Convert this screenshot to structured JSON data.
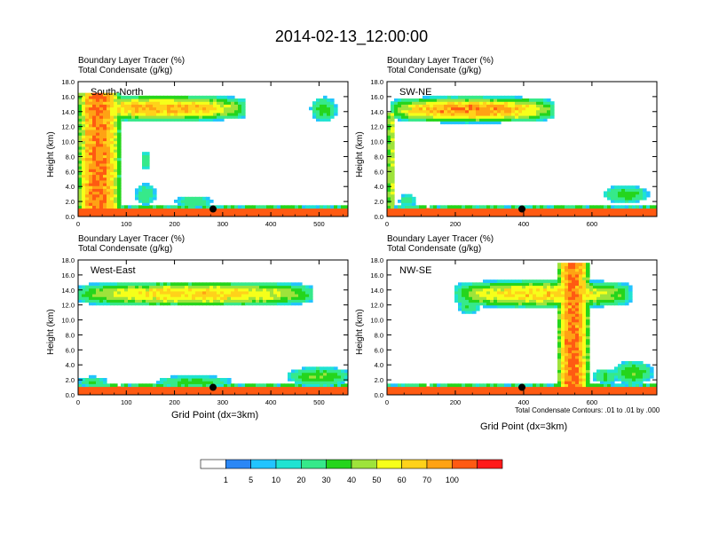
{
  "title": "2014-02-13_12:00:00",
  "colors": {
    "palette": [
      "#ffffff",
      "#2b87f5",
      "#22c4ff",
      "#1fe3d2",
      "#36e98a",
      "#25d51c",
      "#9ee33b",
      "#f6ff1a",
      "#ffd21a",
      "#ffa214",
      "#ff5a12",
      "#ff1a1a"
    ],
    "contour": "#000000",
    "marker": "#000000"
  },
  "chart_data": [
    {
      "type": "heatmap",
      "panel_label": "South-North",
      "field_label_1": "Boundary Layer Tracer    (%)",
      "field_label_2": "Total Condensate    (g/kg)",
      "ylabel": "Height (km)",
      "xlabel": "",
      "xlim": [
        0,
        560
      ],
      "ylim": [
        0,
        18
      ],
      "xticks": [
        "0",
        "100",
        "200",
        "300",
        "400",
        "500"
      ],
      "xtick_values": [
        0,
        100,
        200,
        300,
        400,
        500
      ],
      "yticks": [
        "0.0",
        "2.0",
        "4.0",
        "6.0",
        "8.0",
        "10.0",
        "12.0",
        "14.0",
        "16.0",
        "18.0"
      ],
      "marker": {
        "x": 280,
        "y": 1.0
      },
      "features": [
        {
          "kind": "anvil",
          "x0": 0,
          "x1": 400,
          "yc": 14.5,
          "h": 3.6,
          "peak": 62
        },
        {
          "kind": "column",
          "x0": 0,
          "x1": 85,
          "y0": 0,
          "y1": 16.5,
          "peak": 72
        },
        {
          "kind": "blob",
          "xc": 510,
          "yc": 14.3,
          "rx": 28,
          "ry": 1.7,
          "peak": 25
        },
        {
          "kind": "blob",
          "xc": 140,
          "yc": 7.5,
          "rx": 10,
          "ry": 1.3,
          "peak": 20
        },
        {
          "kind": "blob",
          "xc": 140,
          "yc": 3.0,
          "rx": 22,
          "ry": 1.5,
          "peak": 18
        },
        {
          "kind": "blob",
          "xc": 240,
          "yc": 2.0,
          "rx": 40,
          "ry": 0.8,
          "peak": 18
        }
      ]
    },
    {
      "type": "heatmap",
      "panel_label": "SW-NE",
      "field_label_1": "Boundary Layer Tracer    (%)",
      "field_label_2": "Total Condensate    (g/kg)",
      "ylabel": "Height (km)",
      "xlabel": "",
      "xlim": [
        0,
        790
      ],
      "ylim": [
        0,
        18
      ],
      "xticks": [
        "0",
        "200",
        "400",
        "600"
      ],
      "xtick_values": [
        0,
        200,
        400,
        600
      ],
      "yticks": [
        "0.0",
        "2.0",
        "4.0",
        "6.0",
        "8.0",
        "10.0",
        "12.0",
        "14.0",
        "16.0",
        "18.0"
      ],
      "marker": {
        "x": 395,
        "y": 1.0
      },
      "features": [
        {
          "kind": "anvil",
          "x0": 10,
          "x1": 560,
          "yc": 14.3,
          "h": 3.6,
          "peak": 68
        },
        {
          "kind": "column",
          "x0": 0,
          "x1": 25,
          "y0": 0,
          "y1": 14,
          "peak": 40
        },
        {
          "kind": "blob",
          "xc": 700,
          "yc": 3.0,
          "rx": 70,
          "ry": 1.2,
          "peak": 25
        },
        {
          "kind": "blob",
          "xc": 60,
          "yc": 2.2,
          "rx": 25,
          "ry": 0.8,
          "peak": 18
        }
      ]
    },
    {
      "type": "heatmap",
      "panel_label": "West-East",
      "field_label_1": "Boundary Layer Tracer    (%)",
      "field_label_2": "Total Condensate    (g/kg)",
      "ylabel": "Height (km)",
      "xlabel": "Grid Point (dx=3km)",
      "xlim": [
        0,
        560
      ],
      "ylim": [
        0,
        18
      ],
      "xticks": [
        "0",
        "100",
        "200",
        "300",
        "400",
        "500"
      ],
      "xtick_values": [
        0,
        100,
        200,
        300,
        400,
        500
      ],
      "yticks": [
        "0.0",
        "2.0",
        "4.0",
        "6.0",
        "8.0",
        "10.0",
        "12.0",
        "14.0",
        "16.0",
        "18.0"
      ],
      "marker": {
        "x": 280,
        "y": 1.0
      },
      "features": [
        {
          "kind": "anvil",
          "x0": 0,
          "x1": 560,
          "yc": 13.5,
          "h": 3.4,
          "peak": 55
        },
        {
          "kind": "blob",
          "xc": 240,
          "yc": 1.8,
          "rx": 80,
          "ry": 0.8,
          "peak": 25
        },
        {
          "kind": "blob",
          "xc": 500,
          "yc": 2.5,
          "rx": 70,
          "ry": 1.3,
          "peak": 30
        },
        {
          "kind": "blob",
          "xc": 30,
          "yc": 1.8,
          "rx": 30,
          "ry": 0.7,
          "peak": 20
        }
      ]
    },
    {
      "type": "heatmap",
      "panel_label": "NW-SE",
      "field_label_1": "Boundary Layer Tracer    (%)",
      "field_label_2": "Total Condensate    (g/kg)",
      "ylabel": "Height (km)",
      "xlabel": "Grid Point (dx=3km)",
      "xlim": [
        0,
        790
      ],
      "ylim": [
        0,
        18
      ],
      "xticks": [
        "0",
        "200",
        "400",
        "600"
      ],
      "xtick_values": [
        0,
        200,
        400,
        600
      ],
      "yticks": [
        "0.0",
        "2.0",
        "4.0",
        "6.0",
        "8.0",
        "10.0",
        "12.0",
        "14.0",
        "16.0",
        "18.0"
      ],
      "marker": {
        "x": 395,
        "y": 1.0
      },
      "features": [
        {
          "kind": "anvil",
          "x0": 200,
          "x1": 790,
          "yc": 13.5,
          "h": 3.8,
          "peak": 55
        },
        {
          "kind": "column",
          "x0": 500,
          "x1": 590,
          "y0": 0,
          "y1": 17.5,
          "peak": 72
        },
        {
          "kind": "blob",
          "xc": 240,
          "yc": 11.8,
          "rx": 35,
          "ry": 0.9,
          "peak": 20
        },
        {
          "kind": "blob",
          "xc": 720,
          "yc": 3.0,
          "rx": 60,
          "ry": 1.6,
          "peak": 30
        },
        {
          "kind": "blob",
          "xc": 640,
          "yc": 2.5,
          "rx": 40,
          "ry": 1.0,
          "peak": 22
        }
      ]
    }
  ],
  "footnote": "Total Condensate Contours: .01 to .01 by .000",
  "colorbar": {
    "tick_labels": [
      "1",
      "5",
      "10",
      "20",
      "30",
      "40",
      "50",
      "60",
      "70",
      "100"
    ]
  }
}
